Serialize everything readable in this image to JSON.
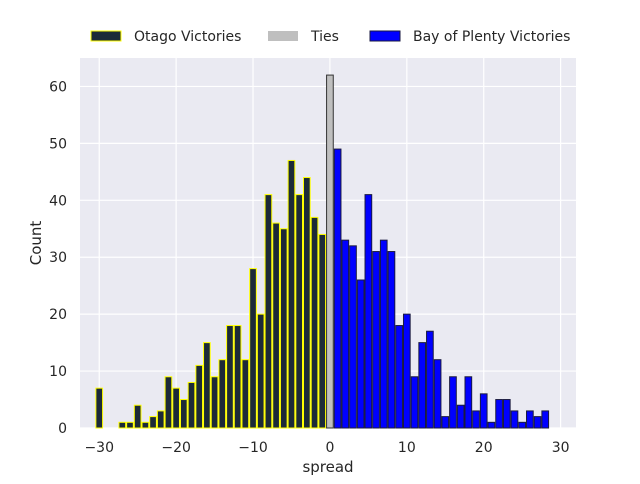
{
  "chart_data": {
    "type": "bar",
    "xlabel": "spread",
    "ylabel": "Count",
    "xlim": [
      -32.5,
      32
    ],
    "ylim": [
      0,
      65
    ],
    "xticks": [
      -30,
      -20,
      -10,
      0,
      10,
      20,
      30
    ],
    "yticks": [
      0,
      10,
      20,
      30,
      40,
      50,
      60
    ],
    "grid": true,
    "legend_position": "top",
    "series": [
      {
        "name": "Otago Victories",
        "fill": "#1c2a38",
        "edge": "#ffff00",
        "x": [
          -30,
          -29,
          -28,
          -27,
          -26,
          -25,
          -24,
          -23,
          -22,
          -21,
          -20,
          -19,
          -18,
          -17,
          -16,
          -15,
          -14,
          -13,
          -12,
          -11,
          -10,
          -9,
          -8,
          -7,
          -6,
          -5,
          -4,
          -3,
          -2,
          -1
        ],
        "values": [
          7,
          0,
          0,
          1,
          1,
          4,
          1,
          2,
          3,
          9,
          7,
          5,
          8,
          11,
          15,
          9,
          12,
          18,
          18,
          12,
          28,
          20,
          41,
          36,
          35,
          47,
          41,
          44,
          37,
          34
        ]
      },
      {
        "name": "Ties",
        "fill": "#bfbfbf",
        "edge": "#333333",
        "x": [
          0
        ],
        "values": [
          62
        ]
      },
      {
        "name": "Bay of Plenty Victories",
        "fill": "#0000ff",
        "edge": "#1a1a40",
        "x": [
          1,
          2,
          3,
          4,
          5,
          6,
          7,
          8,
          9,
          10,
          11,
          12,
          13,
          14,
          15,
          16,
          17,
          18,
          19,
          20,
          21,
          22,
          23,
          24,
          25,
          26,
          27,
          28,
          29
        ],
        "values": [
          49,
          33,
          32,
          26,
          41,
          31,
          33,
          31,
          18,
          20,
          9,
          15,
          17,
          12,
          2,
          9,
          4,
          9,
          3,
          6,
          1,
          5,
          5,
          3,
          1,
          3,
          2,
          3,
          0
        ]
      }
    ]
  }
}
